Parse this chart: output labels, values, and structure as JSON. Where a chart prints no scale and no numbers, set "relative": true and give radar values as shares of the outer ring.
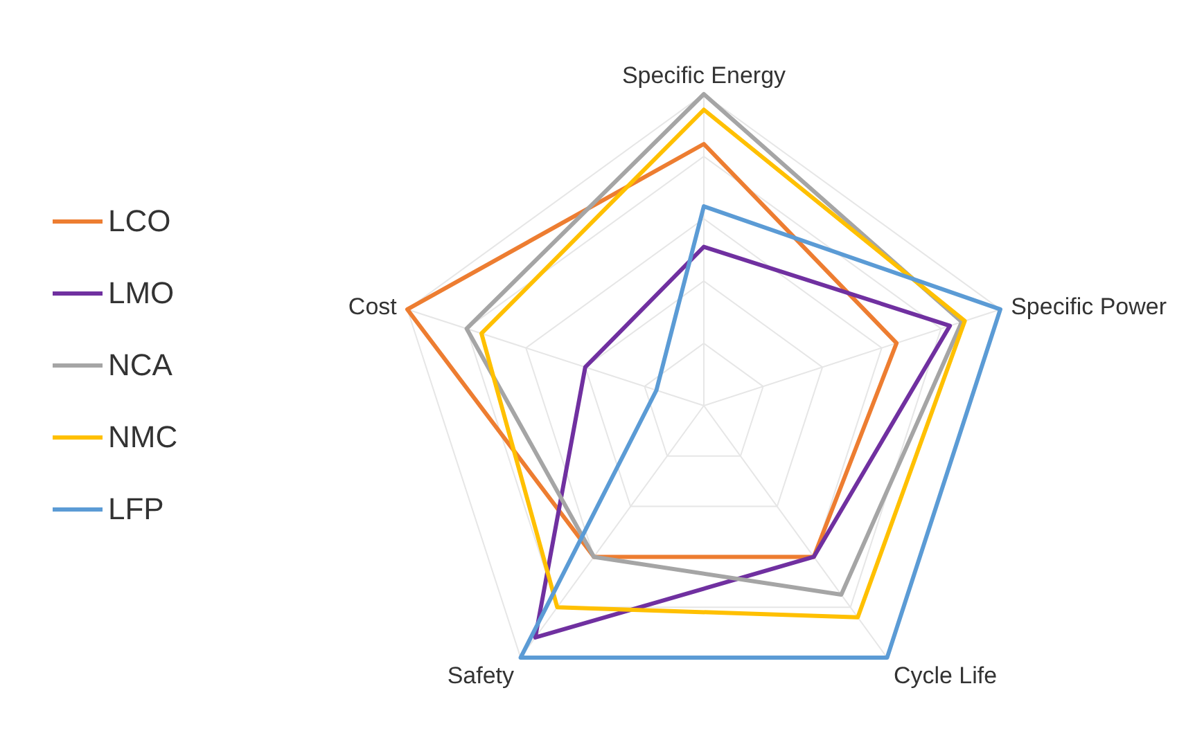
{
  "chart_data": {
    "type": "radar",
    "relative": true,
    "grid": true,
    "legend": "left",
    "categories": [
      "Specific Energy",
      "Specific Power",
      "Cycle Life",
      "Safety",
      "Cost"
    ],
    "series": [
      {
        "name": "LCO",
        "color": "#ed7d31",
        "values": [
          0.84,
          0.65,
          0.6,
          0.6,
          1
        ]
      },
      {
        "name": "LMO",
        "color": "#7030a0",
        "values": [
          0.51,
          0.83,
          0.6,
          0.92,
          0.4
        ]
      },
      {
        "name": "NCA",
        "color": "#a5a5a5",
        "values": [
          1,
          0.87,
          0.75,
          0.6,
          0.8
        ]
      },
      {
        "name": "NMC",
        "color": "#ffc000",
        "values": [
          0.95,
          0.88,
          0.84,
          0.8,
          0.75
        ]
      },
      {
        "name": "LFP",
        "color": "#5b9bd5",
        "values": [
          0.64,
          1,
          1,
          1,
          0.16
        ]
      }
    ]
  }
}
